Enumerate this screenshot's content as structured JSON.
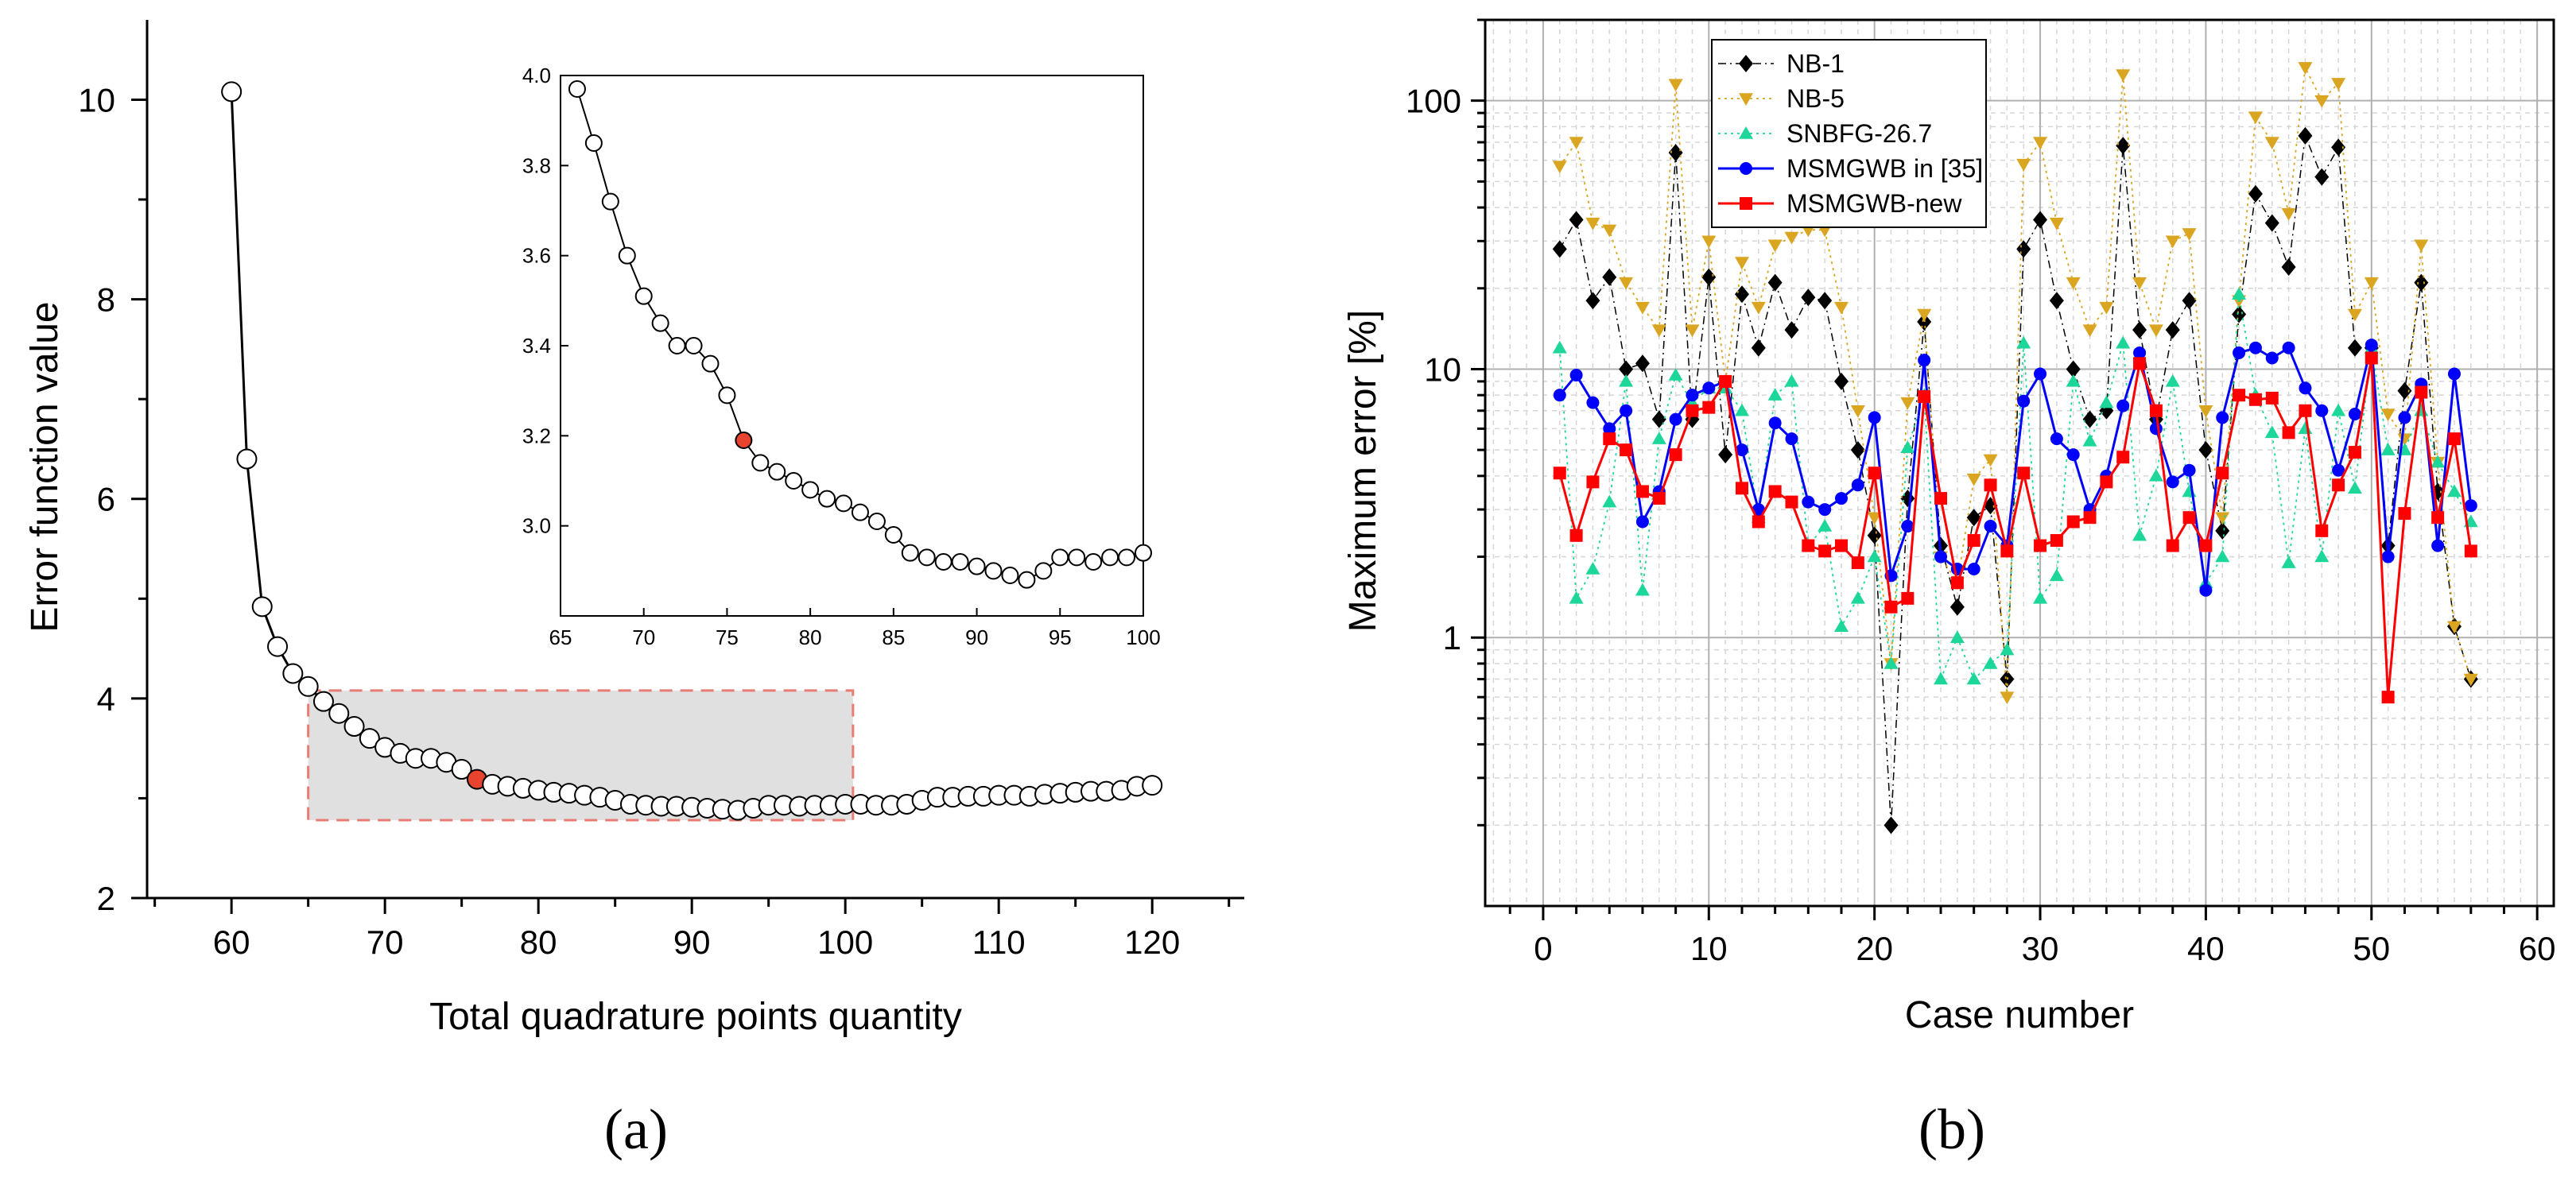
{
  "colors": {
    "axis": "#000000",
    "marker_edge": "#000000",
    "marker_face": "#ffffff",
    "highlight": "#e8432f",
    "shade_fill": "#e0e0e0",
    "shade_edge": "#e87c74",
    "grid_major": "#b0b0b0",
    "grid_minor": "#d6d6d6",
    "nb1": "#000000",
    "nb5": "#daa520",
    "snbfg": "#1dd69a",
    "msmgwb35": "#0000ff",
    "msmgwbnew": "#ff0000"
  },
  "chart_data": [
    {
      "id": "a",
      "type": "line",
      "xlabel": "Total quadrature points quantity",
      "ylabel": "Error function value",
      "xlim": [
        54.5,
        126
      ],
      "ylim": [
        2,
        10.8
      ],
      "xticks": [
        60,
        70,
        80,
        90,
        100,
        110,
        120
      ],
      "yticks": [
        2,
        4,
        6,
        8,
        10
      ],
      "x": [
        60,
        61,
        62,
        63,
        64,
        65,
        66,
        67,
        68,
        69,
        70,
        71,
        72,
        73,
        74,
        75,
        76,
        77,
        78,
        79,
        80,
        81,
        82,
        83,
        84,
        85,
        86,
        87,
        88,
        89,
        90,
        91,
        92,
        93,
        94,
        95,
        96,
        97,
        98,
        99,
        100,
        101,
        102,
        103,
        104,
        105,
        106,
        107,
        108,
        109,
        110,
        111,
        112,
        113,
        114,
        115,
        116,
        117,
        118,
        119,
        120
      ],
      "y": [
        10.08,
        6.4,
        4.92,
        4.52,
        4.25,
        4.12,
        3.97,
        3.85,
        3.72,
        3.6,
        3.51,
        3.45,
        3.4,
        3.4,
        3.36,
        3.29,
        3.19,
        3.14,
        3.12,
        3.1,
        3.08,
        3.06,
        3.05,
        3.03,
        3.01,
        2.98,
        2.94,
        2.93,
        2.92,
        2.92,
        2.91,
        2.9,
        2.89,
        2.88,
        2.9,
        2.93,
        2.93,
        2.92,
        2.93,
        2.93,
        2.94,
        2.94,
        2.93,
        2.93,
        2.94,
        2.98,
        3.01,
        3.01,
        3.02,
        3.02,
        3.03,
        3.03,
        3.02,
        3.04,
        3.05,
        3.06,
        3.07,
        3.07,
        3.08,
        3.12,
        3.13
      ],
      "highlight_x": 76,
      "shaded_region": {
        "x": [
          65,
          100.5
        ],
        "y": [
          2.78,
          4.08
        ]
      },
      "inset": {
        "xlim": [
          65,
          100
        ],
        "ylim": [
          2.8,
          4.0
        ],
        "xticks": [
          65,
          70,
          75,
          80,
          85,
          90,
          95,
          100
        ],
        "yticks": [
          3.0,
          3.2,
          3.4,
          3.6,
          3.8,
          4.0
        ],
        "ytick_labels": [
          "3.0",
          "3.2",
          "3.4",
          "3.6",
          "3.8",
          "4.0"
        ]
      },
      "caption": "(a)"
    },
    {
      "id": "b",
      "type": "line",
      "yscale": "log",
      "xlabel": "Case number",
      "ylabel": "Maximum error [%]",
      "xlim": [
        -3.5,
        61
      ],
      "ylim": [
        0.1,
        200
      ],
      "xticks": [
        0,
        10,
        20,
        30,
        40,
        50,
        60
      ],
      "yticks": [
        1,
        10,
        100
      ],
      "ytick_labels": [
        "1",
        "10",
        "100"
      ],
      "legend_position": "top-left",
      "series": [
        {
          "name": "NB-1",
          "marker": "diamond",
          "style": "dash-dot",
          "color_key": "nb1",
          "x": [
            1,
            2,
            3,
            4,
            5,
            6,
            7,
            8,
            9,
            10,
            11,
            12,
            13,
            14,
            15,
            16,
            17,
            18,
            19,
            20,
            21,
            22,
            23,
            24,
            25,
            26,
            27,
            28,
            29,
            30,
            31,
            32,
            33,
            34,
            35,
            36,
            37,
            38,
            39,
            40,
            41,
            42,
            43,
            44,
            45,
            46,
            47,
            48,
            49,
            50,
            51,
            52,
            53,
            54,
            55,
            56
          ],
          "values": [
            28,
            36,
            18,
            22,
            10,
            10.5,
            6.5,
            64,
            6.5,
            22,
            4.8,
            19,
            12,
            21,
            14,
            18.5,
            18,
            9,
            5,
            2.4,
            0.2,
            3.3,
            15,
            2.2,
            1.3,
            2.8,
            3.1,
            0.7,
            28,
            36,
            18,
            10,
            6.5,
            7,
            68,
            14,
            6.5,
            14,
            18,
            5,
            2.5,
            16,
            45,
            35,
            24,
            74,
            52,
            67,
            12,
            12,
            2.2,
            8.3,
            21,
            3.5,
            1.1,
            0.7
          ]
        },
        {
          "name": "NB-5",
          "marker": "triangle-down",
          "style": "dot",
          "color_key": "nb5",
          "x": [
            1,
            2,
            3,
            4,
            5,
            6,
            7,
            8,
            9,
            10,
            11,
            12,
            13,
            14,
            15,
            16,
            17,
            18,
            19,
            20,
            21,
            22,
            23,
            24,
            25,
            26,
            27,
            28,
            29,
            30,
            31,
            32,
            33,
            34,
            35,
            36,
            37,
            38,
            39,
            40,
            41,
            42,
            43,
            44,
            45,
            46,
            47,
            48,
            49,
            50,
            51,
            52,
            53,
            54,
            55,
            56
          ],
          "values": [
            57,
            70,
            35,
            33,
            21,
            17,
            14,
            115,
            14,
            30,
            9,
            25,
            17,
            29,
            31,
            33,
            33,
            17,
            7,
            2.8,
            0.8,
            7.5,
            16,
            2,
            1.6,
            3.9,
            4.6,
            0.6,
            58,
            70,
            35,
            21,
            14,
            17,
            125,
            21,
            14,
            30,
            32,
            7,
            2.8,
            18,
            87,
            70,
            38,
            133,
            100,
            116,
            16,
            21,
            6.8,
            5.5,
            29,
            4.5,
            1.1,
            0.7
          ]
        },
        {
          "name": "SNBFG-26.7",
          "marker": "triangle-up",
          "style": "dot",
          "color_key": "snbfg",
          "x": [
            1,
            2,
            3,
            4,
            5,
            6,
            7,
            8,
            9,
            10,
            11,
            12,
            13,
            14,
            15,
            16,
            17,
            18,
            19,
            20,
            21,
            22,
            23,
            24,
            25,
            26,
            27,
            28,
            29,
            30,
            31,
            32,
            33,
            34,
            35,
            36,
            37,
            38,
            39,
            40,
            41,
            42,
            43,
            44,
            45,
            46,
            47,
            48,
            49,
            50,
            51,
            52,
            53,
            54,
            55,
            56
          ],
          "values": [
            12,
            1.4,
            1.8,
            3.2,
            9,
            1.5,
            5.5,
            9.5,
            7.5,
            8.5,
            8.5,
            7,
            2.8,
            8,
            9,
            2.2,
            2.6,
            1.1,
            1.4,
            2,
            0.8,
            5.1,
            8,
            0.7,
            1,
            0.7,
            0.8,
            0.9,
            12.5,
            1.4,
            1.7,
            9,
            5.4,
            7.5,
            12.5,
            2.4,
            4,
            9,
            3.5,
            1.6,
            2,
            19,
            8,
            5.8,
            1.9,
            6,
            2,
            7,
            3.6,
            12,
            5,
            5,
            7,
            4.5,
            3.5,
            2.7
          ]
        },
        {
          "name": "MSMGWB in [35]",
          "marker": "circle",
          "style": "solid",
          "color_key": "msmgwb35",
          "x": [
            1,
            2,
            3,
            4,
            5,
            6,
            7,
            8,
            9,
            10,
            11,
            12,
            13,
            14,
            15,
            16,
            17,
            18,
            19,
            20,
            21,
            22,
            23,
            24,
            25,
            26,
            27,
            28,
            29,
            30,
            31,
            32,
            33,
            34,
            35,
            36,
            37,
            38,
            39,
            40,
            41,
            42,
            43,
            44,
            45,
            46,
            47,
            48,
            49,
            50,
            51,
            52,
            53,
            54,
            55,
            56
          ],
          "values": [
            8,
            9.5,
            7.5,
            6,
            7,
            2.7,
            3.5,
            6.5,
            8,
            8.5,
            9,
            5,
            3,
            6.3,
            5.5,
            3.2,
            3,
            3.3,
            3.7,
            6.6,
            1.7,
            2.6,
            10.8,
            2,
            1.8,
            1.8,
            2.6,
            2.2,
            7.6,
            9.6,
            5.5,
            4.8,
            3,
            4,
            7.3,
            11.5,
            6,
            3.8,
            4.2,
            1.5,
            6.6,
            11.5,
            12,
            11,
            12,
            8.5,
            7,
            4.2,
            6.8,
            12.3,
            2,
            6.6,
            8.8,
            2.2,
            9.6,
            3.1
          ]
        },
        {
          "name": "MSMGWB-new",
          "marker": "square",
          "style": "solid",
          "color_key": "msmgwbnew",
          "x": [
            1,
            2,
            3,
            4,
            5,
            6,
            7,
            8,
            9,
            10,
            11,
            12,
            13,
            14,
            15,
            16,
            17,
            18,
            19,
            20,
            21,
            22,
            23,
            24,
            25,
            26,
            27,
            28,
            29,
            30,
            31,
            32,
            33,
            34,
            35,
            36,
            37,
            38,
            39,
            40,
            41,
            42,
            43,
            44,
            45,
            46,
            47,
            48,
            49,
            50,
            51,
            52,
            53,
            54,
            55,
            56
          ],
          "values": [
            4.1,
            2.4,
            3.8,
            5.5,
            5,
            3.5,
            3.3,
            4.8,
            7,
            7.2,
            9,
            3.6,
            2.7,
            3.5,
            3.2,
            2.2,
            2.1,
            2.2,
            1.9,
            4.1,
            1.3,
            1.4,
            7.9,
            3.3,
            1.6,
            2.3,
            3.7,
            2.1,
            4.1,
            2.2,
            2.3,
            2.7,
            2.8,
            3.8,
            4.7,
            10.5,
            7,
            2.2,
            2.8,
            2.2,
            4.1,
            8,
            7.7,
            7.8,
            5.8,
            7,
            2.5,
            3.7,
            4.9,
            11,
            0.6,
            2.9,
            8.2,
            2.8,
            5.5,
            2.1
          ]
        }
      ],
      "caption": "(b)"
    }
  ]
}
